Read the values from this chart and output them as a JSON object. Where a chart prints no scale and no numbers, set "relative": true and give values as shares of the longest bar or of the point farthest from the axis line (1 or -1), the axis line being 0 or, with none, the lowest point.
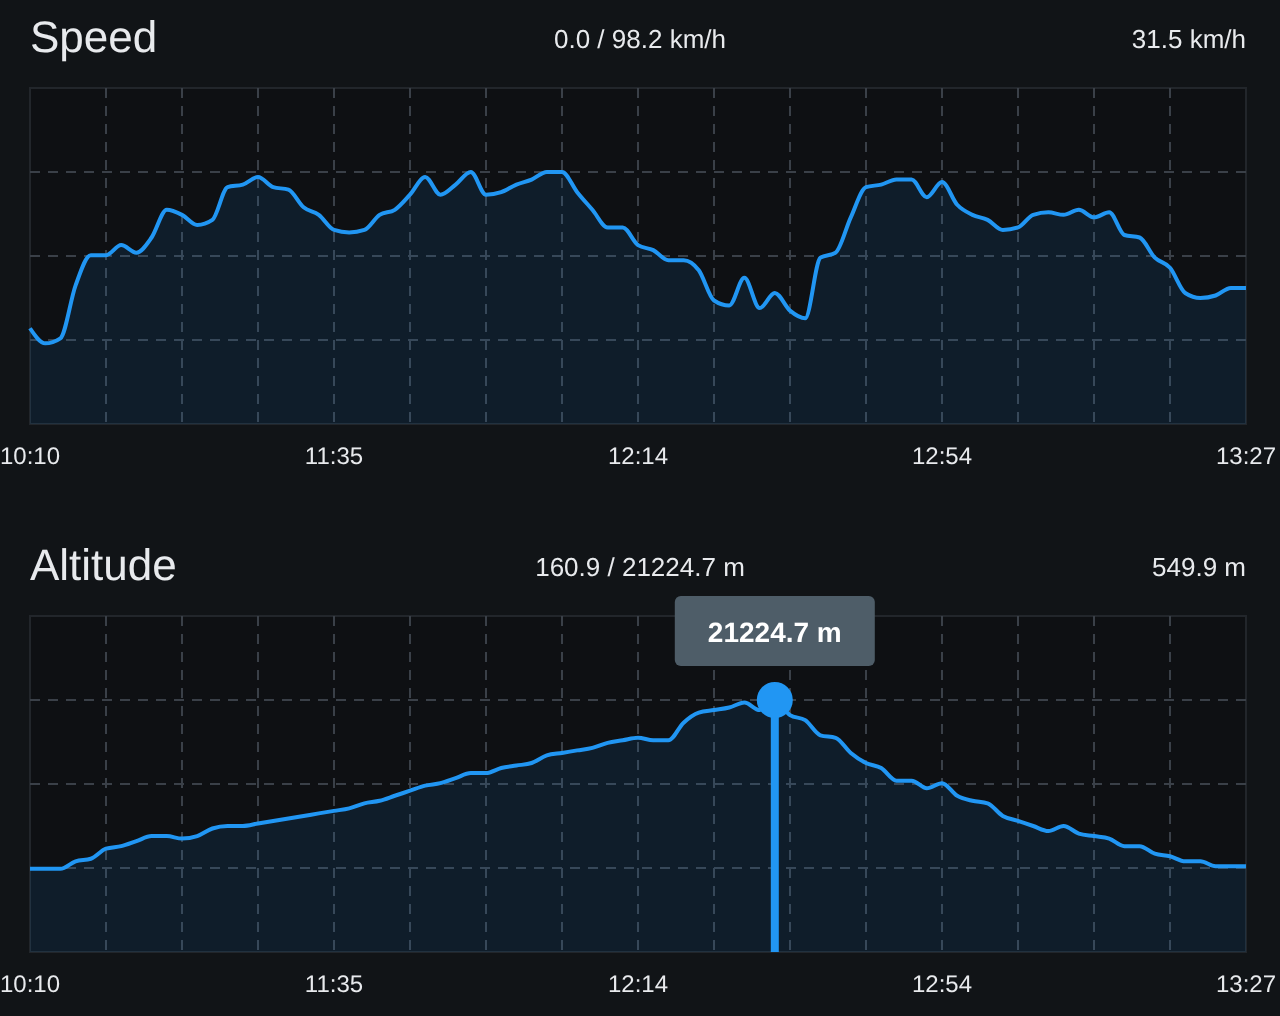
{
  "chart_data": [
    {
      "type": "area",
      "title": "Speed",
      "subtitle": "0.0 / 98.2 km/h",
      "annotations": [
        "31.5 km/h"
      ],
      "relative": true,
      "grid": true,
      "color": "#2196f3",
      "categories": [
        "10:10",
        null,
        null,
        null,
        null,
        null,
        null,
        null,
        null,
        null,
        null,
        null,
        null,
        null,
        null,
        null,
        null,
        null,
        null,
        null,
        "11:35",
        null,
        null,
        null,
        null,
        null,
        null,
        null,
        null,
        null,
        null,
        null,
        null,
        null,
        null,
        null,
        null,
        null,
        null,
        null,
        "12:14",
        null,
        null,
        null,
        null,
        null,
        null,
        null,
        null,
        null,
        null,
        null,
        null,
        null,
        null,
        null,
        null,
        null,
        null,
        null,
        "12:54",
        null,
        null,
        null,
        null,
        null,
        null,
        null,
        null,
        null,
        null,
        null,
        null,
        null,
        null,
        null,
        null,
        null,
        null,
        null,
        "13:27"
      ],
      "values": [
        0.38,
        0.32,
        0.34,
        0.55,
        0.67,
        0.67,
        0.71,
        0.68,
        0.74,
        0.85,
        0.83,
        0.79,
        0.81,
        0.94,
        0.95,
        0.98,
        0.94,
        0.93,
        0.86,
        0.83,
        0.77,
        0.76,
        0.77,
        0.83,
        0.85,
        0.91,
        0.98,
        0.91,
        0.95,
        1,
        0.91,
        0.92,
        0.95,
        0.97,
        1,
        1,
        0.92,
        0.85,
        0.78,
        0.78,
        0.71,
        0.69,
        0.65,
        0.65,
        0.61,
        0.49,
        0.47,
        0.58,
        0.46,
        0.52,
        0.45,
        0.42,
        0.66,
        0.68,
        0.82,
        0.94,
        0.95,
        0.97,
        0.97,
        0.9,
        0.96,
        0.87,
        0.83,
        0.81,
        0.77,
        0.78,
        0.83,
        0.84,
        0.83,
        0.85,
        0.82,
        0.84,
        0.75,
        0.74,
        0.66,
        0.62,
        0.52,
        0.5,
        0.51,
        0.54,
        0.54
      ]
    },
    {
      "type": "area",
      "title": "Altitude",
      "subtitle": "160.9 / 21224.7 m",
      "annotations": [
        "549.9 m",
        {
          "text": "21224.7 m",
          "y": 1
        }
      ],
      "relative": true,
      "grid": true,
      "color": "#2196f3",
      "categories": [
        "10:10",
        null,
        null,
        null,
        null,
        null,
        null,
        null,
        null,
        null,
        null,
        null,
        null,
        null,
        null,
        null,
        null,
        null,
        null,
        null,
        "11:35",
        null,
        null,
        null,
        null,
        null,
        null,
        null,
        null,
        null,
        null,
        null,
        null,
        null,
        null,
        null,
        null,
        null,
        null,
        null,
        "12:14",
        null,
        null,
        null,
        null,
        null,
        null,
        null,
        null,
        null,
        null,
        null,
        null,
        null,
        null,
        null,
        null,
        null,
        null,
        null,
        "12:54",
        null,
        null,
        null,
        null,
        null,
        null,
        null,
        null,
        null,
        null,
        null,
        null,
        null,
        null,
        null,
        null,
        null,
        null,
        null,
        "13:27"
      ],
      "values": [
        0.33,
        0.33,
        0.33,
        0.36,
        0.37,
        0.41,
        0.42,
        0.44,
        0.46,
        0.46,
        0.45,
        0.46,
        0.49,
        0.5,
        0.5,
        0.51,
        0.52,
        0.53,
        0.54,
        0.55,
        0.56,
        0.57,
        0.59,
        0.6,
        0.62,
        0.64,
        0.66,
        0.67,
        0.69,
        0.71,
        0.71,
        0.73,
        0.74,
        0.75,
        0.78,
        0.79,
        0.8,
        0.81,
        0.83,
        0.84,
        0.85,
        0.84,
        0.84,
        0.91,
        0.95,
        0.96,
        0.97,
        0.99,
        0.96,
        1,
        0.94,
        0.92,
        0.86,
        0.85,
        0.79,
        0.75,
        0.73,
        0.68,
        0.68,
        0.65,
        0.67,
        0.62,
        0.6,
        0.59,
        0.54,
        0.52,
        0.5,
        0.48,
        0.5,
        0.47,
        0.46,
        0.45,
        0.42,
        0.42,
        0.39,
        0.38,
        0.36,
        0.36,
        0.34,
        0.34,
        0.34
      ]
    }
  ]
}
